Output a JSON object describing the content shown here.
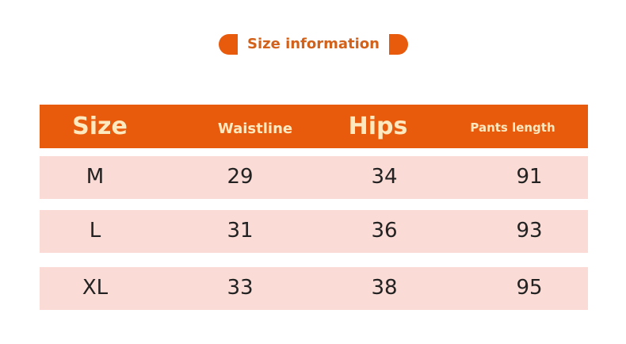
{
  "title": "Size information",
  "colors": {
    "accent": "#e85a0c",
    "row": "#fadbd5",
    "header_text": "#fde9c0"
  },
  "headers": [
    "Size",
    "Waistline",
    "Hips",
    "Pants length"
  ],
  "rows": [
    [
      "M",
      "29",
      "34",
      "91"
    ],
    [
      "L",
      "31",
      "36",
      "93"
    ],
    [
      "XL",
      "33",
      "38",
      "95"
    ]
  ]
}
